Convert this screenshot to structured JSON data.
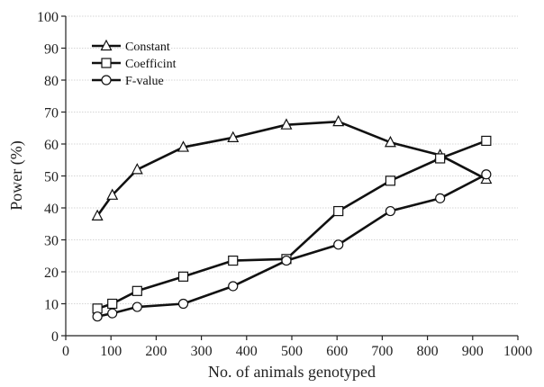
{
  "chart_data": {
    "type": "line",
    "title": "",
    "xlabel": "No. of animals genotyped",
    "ylabel": "Power (%)",
    "xlim": [
      0,
      1000
    ],
    "ylim": [
      0,
      100
    ],
    "xticks": [
      0,
      100,
      200,
      300,
      400,
      500,
      600,
      700,
      800,
      900,
      1000
    ],
    "yticks": [
      0,
      10,
      20,
      30,
      40,
      50,
      60,
      70,
      80,
      90,
      100
    ],
    "grid": "horizontal dotted",
    "legend": "top-left",
    "series": [
      {
        "name": "Constant",
        "marker": "triangle",
        "x": [
          70,
          103,
          158,
          260,
          370,
          488,
          603,
          718,
          828,
          930
        ],
        "y": [
          37.5,
          44,
          52,
          59,
          62,
          66,
          67,
          60.5,
          56.5,
          49
        ]
      },
      {
        "name": "Coefficint",
        "marker": "square",
        "x": [
          70,
          103,
          158,
          260,
          370,
          488,
          603,
          718,
          828,
          930
        ],
        "y": [
          8.5,
          10,
          14,
          18.5,
          23.5,
          24,
          39,
          48.5,
          55.5,
          61
        ]
      },
      {
        "name": "F-value",
        "marker": "circle",
        "x": [
          70,
          103,
          158,
          260,
          370,
          488,
          603,
          718,
          828,
          930
        ],
        "y": [
          6,
          7,
          9,
          10,
          15.5,
          23.5,
          28.5,
          39,
          43,
          50.5
        ]
      }
    ]
  }
}
